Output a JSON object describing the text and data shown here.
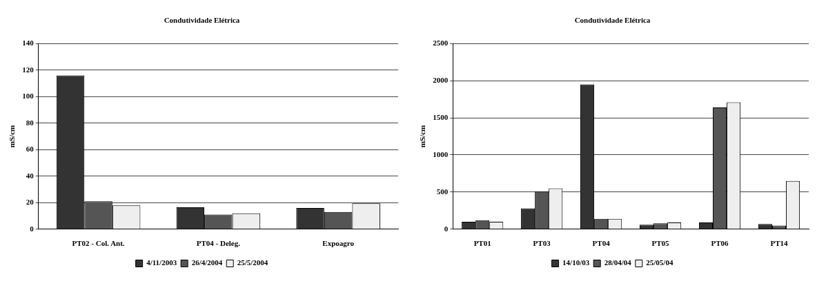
{
  "chart_data": [
    {
      "type": "bar",
      "title": "Condutividade Elétrica",
      "ylabel": "mS/cm",
      "categories": [
        "PT02 - Col. Ant.",
        "PT04 - Deleg.",
        "Expoagro"
      ],
      "series": [
        {
          "name": "4/11/2003",
          "color": "#333333",
          "values": [
            116,
            16.5,
            16
          ]
        },
        {
          "name": "26/4/2004",
          "color": "#555555",
          "values": [
            21,
            11,
            13
          ]
        },
        {
          "name": "25/5/2004",
          "color": "#eeeeee",
          "values": [
            18,
            12,
            19.5
          ]
        }
      ],
      "ylim": [
        0,
        140
      ],
      "yticks": [
        0,
        20,
        40,
        60,
        80,
        100,
        120,
        140
      ],
      "grid": "y",
      "legend": "bottom"
    },
    {
      "type": "bar",
      "title": "Condutividade Elétrica",
      "ylabel": "mS/cm",
      "categories": [
        "PT01",
        "PT03",
        "PT04",
        "PT05",
        "PT06",
        "PT14"
      ],
      "series": [
        {
          "name": "14/10/03",
          "color": "#333333",
          "values": [
            100,
            280,
            1950,
            60,
            90,
            70
          ]
        },
        {
          "name": "28/04/04",
          "color": "#555555",
          "values": [
            120,
            510,
            140,
            80,
            1640,
            50
          ]
        },
        {
          "name": "25/05/04",
          "color": "#eeeeee",
          "values": [
            100,
            550,
            140,
            90,
            1710,
            650
          ]
        }
      ],
      "ylim": [
        0,
        2500
      ],
      "yticks": [
        0,
        500,
        1000,
        1500,
        2000,
        2500
      ],
      "grid": "y",
      "legend": "bottom"
    }
  ]
}
